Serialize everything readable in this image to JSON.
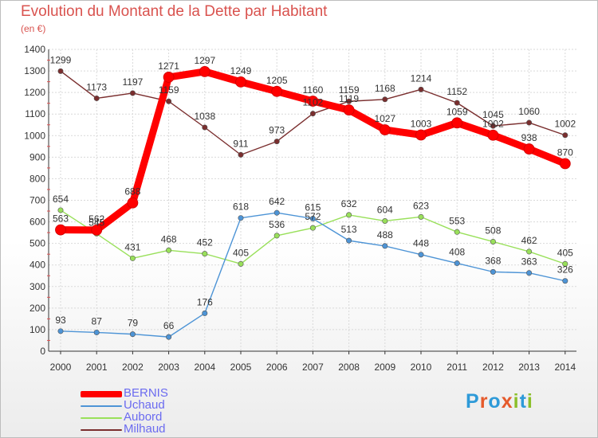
{
  "title": "Evolution du Montant de la Dette par Habitant",
  "subtitle": "(en €)",
  "logo": {
    "letters": [
      "P",
      "r",
      "o",
      "x",
      "i",
      "t",
      "i"
    ],
    "colors": [
      "#2e9ad8",
      "#e55a2b",
      "#2e9ad8",
      "#e55a2b",
      "#8bbf2a",
      "#2e9ad8",
      "#8bbf2a"
    ]
  },
  "chart_data": {
    "type": "line",
    "title": "Evolution du Montant de la Dette par Habitant",
    "ylabel": "(en €)",
    "x": [
      "2000",
      "2001",
      "2002",
      "2003",
      "2004",
      "2005",
      "2006",
      "2007",
      "2008",
      "2009",
      "2010",
      "2011",
      "2012",
      "2013",
      "2014"
    ],
    "ylim": [
      0,
      1400
    ],
    "yticks": [
      0,
      100,
      200,
      300,
      400,
      500,
      600,
      700,
      800,
      900,
      1000,
      1100,
      1200,
      1300,
      1400
    ],
    "grid": true,
    "legend_position": "bottom-left",
    "series": [
      {
        "name": "BERNIS",
        "color": "#ff0000",
        "values": [
          563,
          562,
          688,
          1271,
          1297,
          1249,
          1205,
          1160,
          1119,
          1027,
          1003,
          1059,
          1002,
          938,
          870
        ],
        "labels": [
          "563",
          "562",
          "688",
          "1271",
          "1297",
          "1249",
          "1205",
          "1160",
          "1119",
          "1027",
          "1003",
          "1059",
          "1002",
          "938",
          "870"
        ]
      },
      {
        "name": "Uchaud",
        "color": "#4d94d6",
        "values": [
          93,
          87,
          79,
          66,
          176,
          618,
          642,
          615,
          513,
          488,
          448,
          408,
          368,
          363,
          326
        ],
        "labels": [
          "93",
          "87",
          "79",
          "66",
          "176",
          "618",
          "642",
          "615",
          "513",
          "488",
          "448",
          "408",
          "368",
          "363",
          "326"
        ]
      },
      {
        "name": "Aubord",
        "color": "#99e05a",
        "values": [
          654,
          545,
          431,
          468,
          452,
          405,
          536,
          572,
          632,
          604,
          623,
          553,
          508,
          462,
          405
        ],
        "labels": [
          "654",
          "545",
          "431",
          "468",
          "452",
          "405",
          "536",
          "572",
          "632",
          "604",
          "623",
          "553",
          "508",
          "462",
          "405"
        ]
      },
      {
        "name": "Milhaud",
        "color": "#7a2e2e",
        "values": [
          1299,
          1173,
          1197,
          1159,
          1038,
          911,
          973,
          1102,
          1159,
          1168,
          1214,
          1152,
          1045,
          1060,
          1002
        ],
        "labels": [
          "1299",
          "1173",
          "1197",
          "1159",
          "1038",
          "911",
          "973",
          "1102",
          "1159",
          "1168",
          "1214",
          "1152",
          "1045",
          "1060",
          "1002"
        ]
      }
    ]
  }
}
